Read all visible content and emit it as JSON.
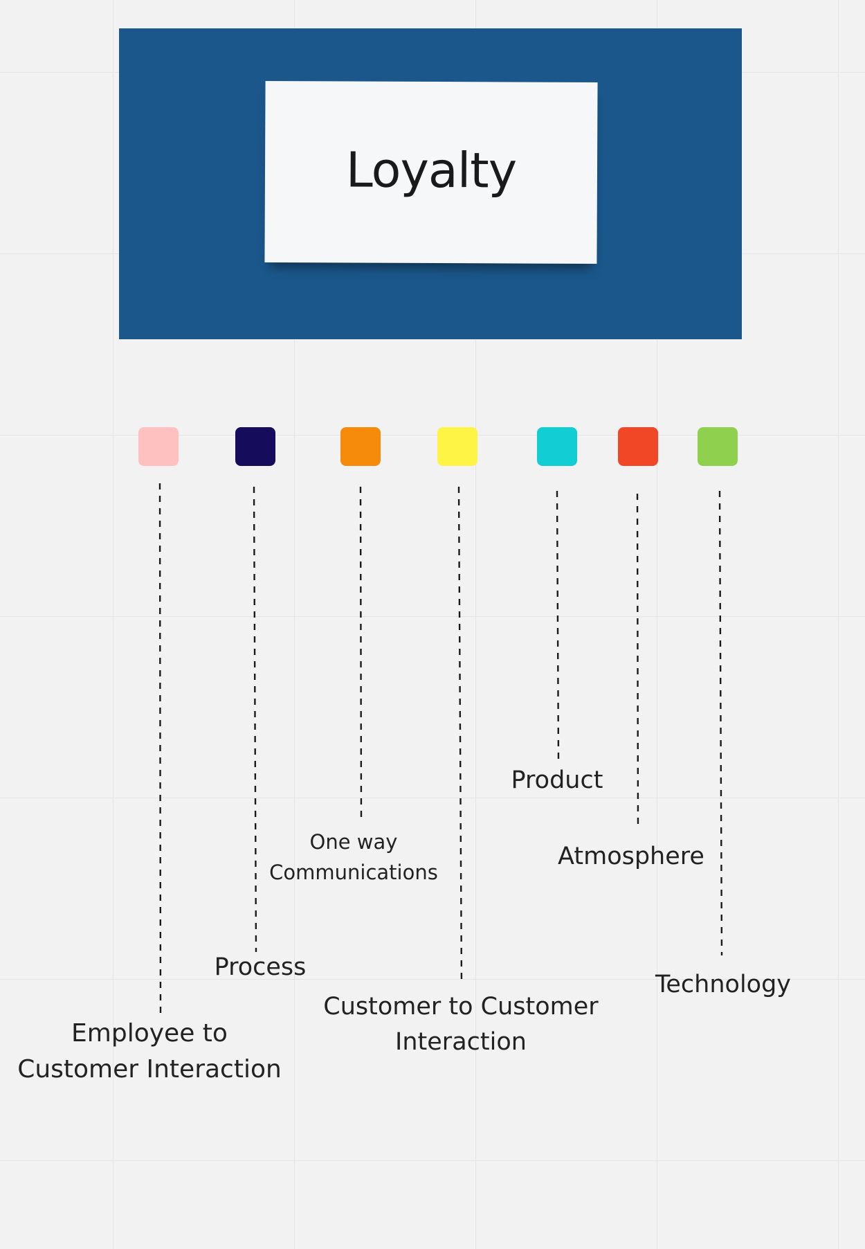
{
  "header": {
    "title": "Loyalty",
    "frame_color": "#1b578b"
  },
  "categories": [
    {
      "id": "employee-to-customer",
      "color": "#ffc0c0",
      "lines": [
        "Employee to",
        "Customer Interaction"
      ]
    },
    {
      "id": "process",
      "color": "#150c5c",
      "lines": [
        "Process"
      ]
    },
    {
      "id": "one-way-communications",
      "color": "#f58a0b",
      "lines": [
        "One way",
        "Communications"
      ]
    },
    {
      "id": "customer-to-customer",
      "color": "#fef445",
      "lines": [
        "Customer to Customer",
        "Interaction"
      ]
    },
    {
      "id": "product",
      "color": "#12cdd4",
      "lines": [
        "Product"
      ]
    },
    {
      "id": "atmosphere",
      "color": "#f24727",
      "lines": [
        "Atmosphere"
      ]
    },
    {
      "id": "technology",
      "color": "#8fd14f",
      "lines": [
        "Technology"
      ]
    }
  ]
}
